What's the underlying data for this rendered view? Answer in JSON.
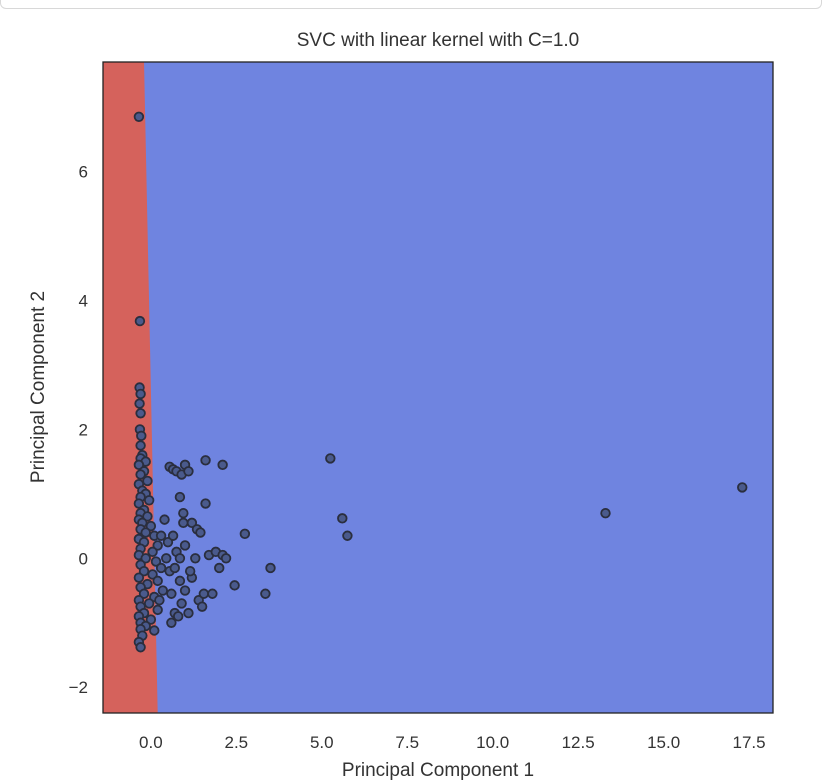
{
  "chart_data": {
    "type": "scatter",
    "title": "SVC with linear kernel with C=1.0",
    "xlabel": "Principal Component 1",
    "ylabel": "Principal Component 2",
    "xlim": [
      -1.4,
      18.2
    ],
    "ylim": [
      -2.4,
      7.7
    ],
    "grid": false,
    "xticks": [
      0.0,
      2.5,
      5.0,
      7.5,
      10.0,
      12.5,
      15.0,
      17.5
    ],
    "xtick_labels": [
      "0.0",
      "2.5",
      "5.0",
      "7.5",
      "10.0",
      "12.5",
      "15.0",
      "17.5"
    ],
    "yticks": [
      -2,
      0,
      2,
      4,
      6
    ],
    "ytick_labels": [
      "−2",
      "0",
      "2",
      "4",
      "6"
    ],
    "regions": [
      {
        "class": "red",
        "color": "#d5625c",
        "x_boundary_top": -0.2,
        "x_boundary_bottom": 0.2
      },
      {
        "class": "blue",
        "color": "#6f84e0"
      }
    ],
    "point_style": {
      "fill": "#4a5a8c",
      "edge": "#2a2e3e"
    },
    "points": [
      [
        -0.35,
        6.85
      ],
      [
        -0.32,
        3.68
      ],
      [
        -0.33,
        2.65
      ],
      [
        -0.3,
        2.55
      ],
      [
        -0.33,
        2.4
      ],
      [
        -0.3,
        2.25
      ],
      [
        -0.32,
        2.0
      ],
      [
        -0.28,
        1.9
      ],
      [
        -0.3,
        1.75
      ],
      [
        -0.25,
        1.6
      ],
      [
        -0.3,
        1.55
      ],
      [
        -0.15,
        1.5
      ],
      [
        -0.35,
        1.45
      ],
      [
        -0.2,
        1.35
      ],
      [
        -0.3,
        1.3
      ],
      [
        -0.1,
        1.2
      ],
      [
        -0.35,
        1.15
      ],
      [
        -0.25,
        1.05
      ],
      [
        -0.15,
        1.0
      ],
      [
        -0.3,
        0.95
      ],
      [
        -0.05,
        0.9
      ],
      [
        -0.35,
        0.85
      ],
      [
        -0.2,
        0.75
      ],
      [
        -0.3,
        0.7
      ],
      [
        -0.1,
        0.65
      ],
      [
        -0.35,
        0.6
      ],
      [
        -0.25,
        0.55
      ],
      [
        0.0,
        0.5
      ],
      [
        -0.3,
        0.45
      ],
      [
        -0.15,
        0.4
      ],
      [
        0.1,
        0.35
      ],
      [
        -0.35,
        0.3
      ],
      [
        -0.2,
        0.25
      ],
      [
        0.2,
        0.2
      ],
      [
        -0.3,
        0.15
      ],
      [
        0.05,
        0.1
      ],
      [
        -0.35,
        0.05
      ],
      [
        -0.15,
        0.0
      ],
      [
        0.15,
        -0.05
      ],
      [
        -0.3,
        -0.1
      ],
      [
        0.3,
        -0.15
      ],
      [
        -0.2,
        -0.2
      ],
      [
        0.05,
        -0.25
      ],
      [
        -0.35,
        -0.3
      ],
      [
        0.2,
        -0.35
      ],
      [
        -0.1,
        -0.4
      ],
      [
        -0.3,
        -0.45
      ],
      [
        0.35,
        -0.5
      ],
      [
        -0.2,
        -0.55
      ],
      [
        0.1,
        -0.6
      ],
      [
        -0.35,
        -0.65
      ],
      [
        -0.05,
        -0.7
      ],
      [
        -0.3,
        -0.75
      ],
      [
        0.2,
        -0.8
      ],
      [
        -0.2,
        -0.85
      ],
      [
        -0.35,
        -0.9
      ],
      [
        0.0,
        -0.95
      ],
      [
        -0.3,
        -1.0
      ],
      [
        -0.15,
        -1.05
      ],
      [
        -0.3,
        -1.1
      ],
      [
        -0.25,
        -1.2
      ],
      [
        -0.35,
        -1.3
      ],
      [
        -0.3,
        -1.38
      ],
      [
        0.1,
        -1.12
      ],
      [
        0.25,
        -0.65
      ],
      [
        0.4,
        0.6
      ],
      [
        0.5,
        0.25
      ],
      [
        0.55,
        -0.2
      ],
      [
        0.6,
        -0.55
      ],
      [
        0.7,
        -0.85
      ],
      [
        0.45,
        0.0
      ],
      [
        0.3,
        0.35
      ],
      [
        0.65,
        0.35
      ],
      [
        0.75,
        0.1
      ],
      [
        0.85,
        -0.35
      ],
      [
        0.9,
        -0.7
      ],
      [
        1.0,
        -0.5
      ],
      [
        1.1,
        -0.85
      ],
      [
        1.2,
        -0.3
      ],
      [
        1.3,
        0.0
      ],
      [
        1.4,
        -0.65
      ],
      [
        1.5,
        -0.75
      ],
      [
        1.55,
        -0.55
      ],
      [
        1.7,
        0.05
      ],
      [
        1.8,
        -0.55
      ],
      [
        1.9,
        0.1
      ],
      [
        2.0,
        -0.15
      ],
      [
        2.1,
        0.05
      ],
      [
        2.2,
        0.0
      ],
      [
        0.55,
        1.42
      ],
      [
        0.65,
        1.38
      ],
      [
        0.75,
        1.35
      ],
      [
        0.9,
        1.3
      ],
      [
        1.0,
        1.45
      ],
      [
        1.1,
        1.35
      ],
      [
        1.6,
        1.52
      ],
      [
        2.1,
        1.45
      ],
      [
        0.85,
        0.95
      ],
      [
        0.95,
        0.7
      ],
      [
        1.6,
        0.85
      ],
      [
        1.0,
        0.2
      ],
      [
        1.2,
        0.55
      ],
      [
        1.35,
        0.45
      ],
      [
        1.45,
        0.4
      ],
      [
        0.95,
        0.55
      ],
      [
        0.7,
        -0.15
      ],
      [
        0.85,
        0.0
      ],
      [
        1.15,
        -0.2
      ],
      [
        0.6,
        -1.0
      ],
      [
        0.8,
        -0.9
      ],
      [
        2.45,
        -0.42
      ],
      [
        2.75,
        0.38
      ],
      [
        3.35,
        -0.55
      ],
      [
        3.5,
        -0.15
      ],
      [
        5.25,
        1.55
      ],
      [
        5.6,
        0.62
      ],
      [
        5.75,
        0.35
      ],
      [
        13.3,
        0.7
      ],
      [
        17.3,
        1.1
      ]
    ]
  }
}
